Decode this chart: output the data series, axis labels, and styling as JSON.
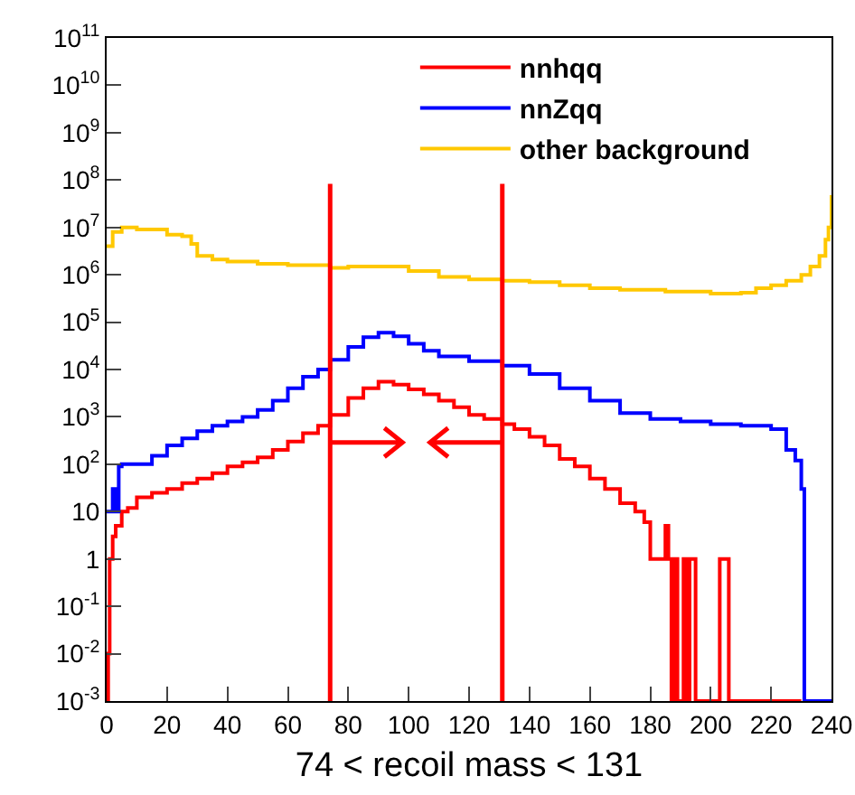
{
  "chart_data": {
    "type": "step",
    "xlabel": "74 < recoil mass < 131",
    "log": "y",
    "legend": "top right",
    "grid": false,
    "tick_labels": "xy",
    "xlim": [
      0,
      240
    ],
    "xticks": [
      0,
      20,
      40,
      60,
      80,
      100,
      120,
      140,
      160,
      180,
      200,
      220,
      240
    ],
    "ylim": [
      0.001,
      100000000000
    ],
    "yticks": [
      {
        "value": 0.001,
        "label": "10$^{-3}$"
      },
      {
        "value": 0.01,
        "label": "10$^{-2}$"
      },
      {
        "value": 0.1,
        "label": "10$^{-1}$"
      },
      1,
      10,
      {
        "value": 100,
        "label": "10$^{2}$"
      },
      {
        "value": 1000,
        "label": "10$^{3}$"
      },
      {
        "value": 10000,
        "label": "10$^{4}$"
      },
      {
        "value": 100000,
        "label": "10$^{5}$"
      },
      {
        "value": 1000000,
        "label": "10$^{6}$"
      },
      {
        "value": 10000000,
        "label": "10$^{7}$"
      },
      {
        "value": 100000000,
        "label": "10$^{8}$"
      },
      {
        "value": 1000000000,
        "label": "10$^{9}$"
      },
      {
        "value": 10000000000,
        "label": "10$^{10}$"
      },
      {
        "value": 100000000000,
        "label": "10$^{11}$"
      }
    ],
    "series": [
      {
        "name": "nnhqq",
        "color": "#ff0000",
        "x": [
          0,
          0.5,
          1,
          2,
          3,
          5,
          7,
          10,
          15,
          20,
          25,
          30,
          35,
          40,
          45,
          50,
          55,
          60,
          65,
          70,
          74,
          80,
          85,
          90,
          95,
          100,
          105,
          110,
          115,
          120,
          125,
          131,
          135,
          140,
          145,
          150,
          155,
          160,
          165,
          170,
          175,
          178,
          180,
          184,
          185,
          186,
          187,
          188,
          189,
          191,
          192,
          193,
          194,
          195,
          203,
          204,
          205,
          206,
          230
        ],
        "values": [
          0.001,
          0.01,
          1,
          3,
          5,
          10,
          12,
          20,
          25,
          30,
          40,
          50,
          65,
          90,
          110,
          140,
          200,
          300,
          450,
          650,
          1100,
          2500,
          4000,
          5500,
          4800,
          3800,
          3000,
          2200,
          1600,
          1100,
          900,
          700,
          550,
          380,
          250,
          130,
          90,
          50,
          30,
          15,
          10,
          6,
          1,
          1,
          5,
          1,
          0.001,
          1,
          0.001,
          1,
          0.001,
          1,
          1,
          0.001,
          1,
          1,
          1,
          0.001,
          0.001
        ]
      },
      {
        "name": "nnZqq",
        "color": "#0000ff",
        "x": [
          0,
          2,
          3,
          4,
          5,
          10,
          15,
          20,
          25,
          30,
          35,
          40,
          45,
          50,
          55,
          60,
          65,
          70,
          74,
          80,
          85,
          90,
          95,
          100,
          105,
          110,
          120,
          131,
          140,
          150,
          160,
          170,
          180,
          190,
          200,
          210,
          220,
          225,
          228,
          230,
          231,
          240
        ],
        "values": [
          10,
          30,
          10,
          90,
          100,
          100,
          150,
          250,
          350,
          500,
          650,
          800,
          1000,
          1400,
          2200,
          4000,
          7000,
          10000,
          16000,
          30000,
          48000,
          60000,
          50000,
          35000,
          25000,
          19000,
          15000,
          12000,
          8000,
          4000,
          2200,
          1200,
          900,
          800,
          700,
          650,
          550,
          200,
          120,
          30,
          0.001,
          0.001
        ]
      },
      {
        "name": "other background",
        "color": "#ffc800",
        "x": [
          0,
          2,
          5,
          10,
          20,
          25,
          28,
          30,
          35,
          40,
          50,
          60,
          74,
          80,
          90,
          100,
          110,
          120,
          131,
          140,
          150,
          160,
          170,
          185,
          200,
          210,
          215,
          220,
          225,
          230,
          233,
          236,
          238,
          239,
          240
        ],
        "values": [
          4000000,
          8000000,
          10000000,
          9000000,
          7000000,
          6500000,
          4500000,
          2500000,
          2100000,
          1900000,
          1700000,
          1600000,
          1400000,
          1500000,
          1500000,
          1200000,
          900000,
          800000,
          750000,
          700000,
          600000,
          520000,
          480000,
          440000,
          400000,
          420000,
          520000,
          600000,
          750000,
          1000000,
          1500000,
          2500000,
          5500000,
          10000000,
          48000000
        ]
      }
    ],
    "ref_lines": [
      {
        "axis": "x",
        "value": 74,
        "color": "#ff0000"
      },
      {
        "axis": "x",
        "value": 131,
        "color": "#ff0000"
      }
    ]
  }
}
